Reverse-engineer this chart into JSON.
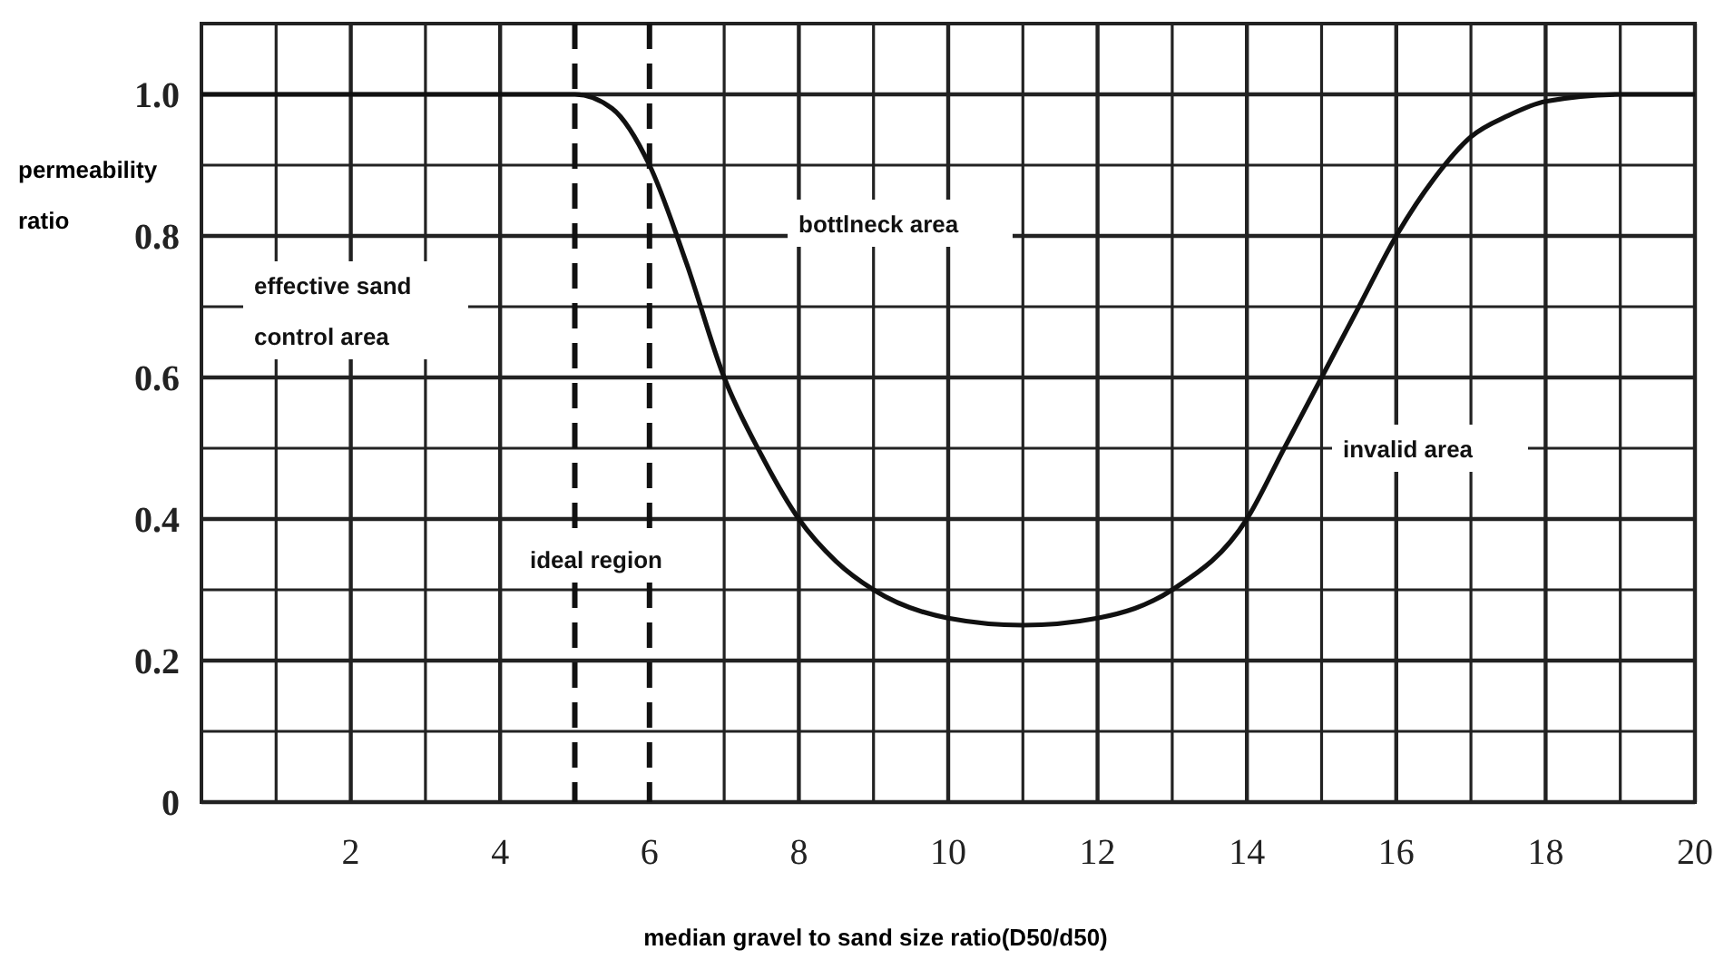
{
  "chart_data": {
    "type": "line",
    "xlabel": "median gravel to sand size ratio(D50/d50)",
    "ylabel": "permeability ratio",
    "xlim": [
      0,
      20
    ],
    "ylim": [
      0,
      1.1
    ],
    "xticks": [
      {
        "value": 1,
        "label": null
      },
      2,
      {
        "value": 3,
        "label": null
      },
      4,
      6,
      {
        "value": 7,
        "label": null
      },
      8,
      {
        "value": 9,
        "label": null
      },
      10,
      {
        "value": 11,
        "label": null
      },
      12,
      {
        "value": 13,
        "label": null
      },
      14,
      {
        "value": 15,
        "label": null
      },
      16,
      {
        "value": 17,
        "label": null
      },
      18,
      {
        "value": 19,
        "label": null
      },
      20
    ],
    "yticks": [
      0,
      {
        "value": 0.1,
        "label": null
      },
      0.2,
      {
        "value": 0.3,
        "label": null
      },
      0.4,
      {
        "value": 0.5,
        "label": null
      },
      0.6,
      {
        "value": 0.7,
        "label": null
      },
      0.8,
      {
        "value": 0.9,
        "label": null
      },
      {
        "value": 1,
        "label": "1.0"
      },
      {
        "value": 1.1,
        "label": null
      }
    ],
    "grid": true,
    "marker": "none",
    "line_style": "solid",
    "series": [
      {
        "color": "#111111",
        "x": [
          0,
          1,
          2,
          3,
          4,
          5,
          5.5,
          6,
          6.5,
          7,
          7.5,
          8,
          8.5,
          9,
          10,
          11,
          12,
          13,
          14,
          14.5,
          15,
          15.5,
          16,
          16.5,
          17,
          17.5,
          18,
          19,
          20
        ],
        "values": [
          1,
          1,
          1,
          1,
          1,
          1,
          0.98,
          0.9,
          0.76,
          0.6,
          0.49,
          0.4,
          0.34,
          0.3,
          0.26,
          0.25,
          0.26,
          0.3,
          0.4,
          0.5,
          0.6,
          0.7,
          0.8,
          0.88,
          0.94,
          0.97,
          0.99,
          1,
          1
        ]
      }
    ],
    "ref_lines": [
      {
        "axis": "x",
        "value": 5,
        "line_style": "dashed",
        "color": "#111111"
      },
      {
        "axis": "x",
        "value": 6,
        "line_style": "dashed",
        "color": "#111111"
      }
    ],
    "annotations": [
      "effective sand control area",
      "bottlneck area",
      "ideal region",
      "invalid area"
    ]
  }
}
